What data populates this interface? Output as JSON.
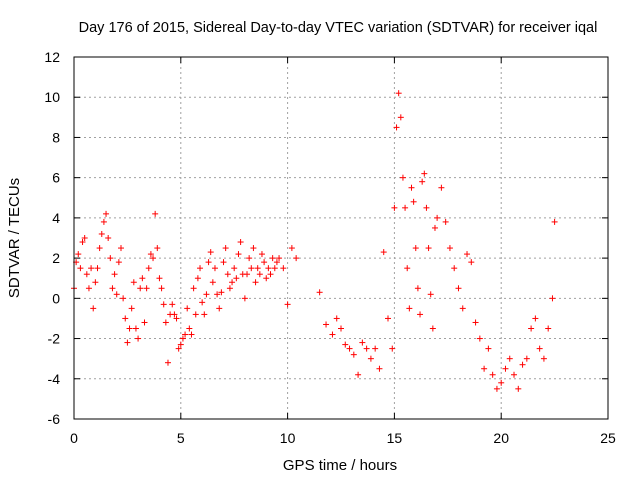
{
  "chart_data": {
    "type": "scatter",
    "title": "Day 176 of 2015, Sidereal Day-to-day VTEC variation (SDTVAR) for receiver iqal",
    "xlabel": "GPS time / hours",
    "ylabel": "SDTVAR / TECUs",
    "xlim": [
      0,
      25
    ],
    "ylim": [
      -6,
      12
    ],
    "xticks": [
      0,
      5,
      10,
      15,
      20,
      25
    ],
    "yticks": [
      -6,
      -4,
      -2,
      0,
      2,
      4,
      6,
      8,
      10,
      12
    ],
    "grid": true,
    "marker": "+",
    "color": "#ff0000",
    "series": [
      {
        "name": "SDTVAR",
        "x": [
          0.0,
          0.1,
          0.2,
          0.3,
          0.4,
          0.5,
          0.6,
          0.7,
          0.8,
          0.9,
          1.0,
          1.1,
          1.2,
          1.3,
          1.4,
          1.5,
          1.6,
          1.7,
          1.8,
          1.9,
          2.0,
          2.1,
          2.2,
          2.3,
          2.4,
          2.5,
          2.6,
          2.7,
          2.8,
          2.9,
          3.0,
          3.1,
          3.2,
          3.3,
          3.4,
          3.5,
          3.6,
          3.7,
          3.8,
          3.9,
          4.0,
          4.1,
          4.2,
          4.3,
          4.4,
          4.5,
          4.6,
          4.7,
          4.8,
          4.9,
          5.0,
          5.1,
          5.2,
          5.3,
          5.4,
          5.5,
          5.6,
          5.7,
          5.8,
          5.9,
          6.0,
          6.1,
          6.2,
          6.3,
          6.4,
          6.5,
          6.6,
          6.7,
          6.8,
          6.9,
          7.0,
          7.1,
          7.2,
          7.3,
          7.4,
          7.5,
          7.6,
          7.7,
          7.8,
          7.9,
          8.0,
          8.1,
          8.2,
          8.3,
          8.4,
          8.5,
          8.6,
          8.7,
          8.8,
          8.9,
          9.0,
          9.1,
          9.2,
          9.3,
          9.4,
          9.5,
          9.6,
          9.8,
          10.0,
          10.2,
          10.4,
          11.5,
          11.8,
          12.1,
          12.3,
          12.5,
          12.7,
          12.9,
          13.1,
          13.3,
          13.5,
          13.7,
          13.9,
          14.1,
          14.3,
          14.5,
          14.7,
          14.9,
          15.0,
          15.1,
          15.2,
          15.3,
          15.4,
          15.5,
          15.6,
          15.7,
          15.8,
          15.9,
          16.0,
          16.1,
          16.2,
          16.3,
          16.4,
          16.5,
          16.6,
          16.7,
          16.8,
          16.9,
          17.0,
          17.2,
          17.4,
          17.6,
          17.8,
          18.0,
          18.2,
          18.4,
          18.6,
          18.8,
          19.0,
          19.2,
          19.4,
          19.6,
          19.8,
          20.0,
          20.2,
          20.4,
          20.6,
          20.8,
          21.0,
          21.2,
          21.4,
          21.6,
          21.8,
          22.0,
          22.2,
          22.4,
          22.5
        ],
        "y": [
          0.5,
          1.8,
          2.2,
          1.5,
          2.8,
          3.0,
          1.2,
          0.5,
          1.5,
          -0.5,
          0.8,
          1.5,
          2.5,
          3.2,
          3.8,
          4.2,
          3.0,
          2.0,
          0.5,
          1.2,
          0.2,
          1.8,
          2.5,
          0.0,
          -1.0,
          -2.2,
          -1.5,
          -0.5,
          0.8,
          -1.5,
          -2.0,
          0.5,
          1.0,
          -1.2,
          0.5,
          1.5,
          2.2,
          2.0,
          4.2,
          2.5,
          1.0,
          0.5,
          -0.3,
          -1.2,
          -3.2,
          -0.8,
          -0.3,
          -0.8,
          -1.0,
          -2.5,
          -2.3,
          -2.0,
          -1.8,
          -0.5,
          -1.5,
          -1.8,
          0.5,
          -0.8,
          1.0,
          1.5,
          -0.2,
          -0.8,
          0.2,
          1.8,
          2.3,
          0.8,
          1.5,
          0.2,
          -0.5,
          0.3,
          1.8,
          2.5,
          1.2,
          0.5,
          0.8,
          1.5,
          1.0,
          2.2,
          2.8,
          1.2,
          0.0,
          1.2,
          2.0,
          1.5,
          2.5,
          0.8,
          1.5,
          1.2,
          2.2,
          1.8,
          1.0,
          1.5,
          1.2,
          2.0,
          1.5,
          1.8,
          2.0,
          1.5,
          -0.3,
          2.5,
          2.0,
          0.3,
          -1.3,
          -1.8,
          -1.0,
          -1.5,
          -2.3,
          -2.5,
          -2.8,
          -3.8,
          -2.2,
          -2.5,
          -3.0,
          -2.5,
          -3.5,
          2.3,
          -1.0,
          -2.5,
          4.5,
          8.5,
          10.2,
          9.0,
          6.0,
          4.5,
          1.5,
          -0.5,
          5.5,
          4.8,
          2.5,
          0.5,
          -0.8,
          5.8,
          6.2,
          4.5,
          2.5,
          0.2,
          -1.5,
          3.5,
          4.0,
          5.5,
          3.8,
          2.5,
          1.5,
          0.5,
          -0.5,
          2.2,
          1.8,
          -1.2,
          -2.0,
          -3.5,
          -2.5,
          -3.8,
          -4.5,
          -4.2,
          -3.5,
          -3.0,
          -3.8,
          -4.5,
          -3.3,
          -3.0,
          -1.5,
          -1.0,
          -2.5,
          -3.0,
          -1.5,
          0.0,
          3.8
        ]
      }
    ]
  }
}
